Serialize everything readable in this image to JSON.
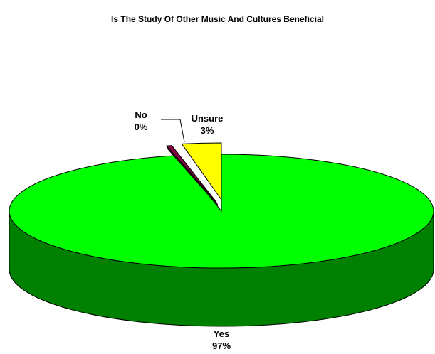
{
  "chart_data": {
    "type": "pie",
    "title": "Is The Study Of Other Music And Cultures Beneficial",
    "three_d": true,
    "slices": [
      {
        "label": "Yes",
        "pct_label": "97%",
        "value": 97,
        "color": "#00ff00",
        "side_color": "#008000"
      },
      {
        "label": "Unsure",
        "pct_label": "3%",
        "value": 3,
        "color": "#ffff00",
        "side_color": "#808000",
        "exploded": true
      },
      {
        "label": "No",
        "pct_label": "0%",
        "value": 0.4,
        "color": "#800040",
        "side_color": "#400020",
        "exploded": true
      }
    ]
  }
}
